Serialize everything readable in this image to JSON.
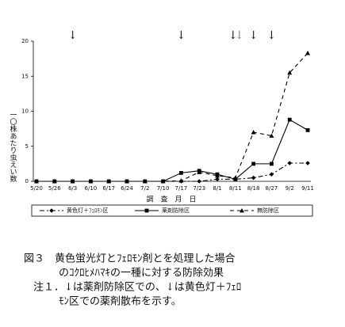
{
  "chart_data": {
    "type": "line",
    "y_axis_label": "一〇株あたり虫えい数",
    "x_axis_label": "調　査　月　日",
    "categories": [
      "5/20",
      "5/26",
      "6/3",
      "6/10",
      "6/17",
      "6/24",
      "7/2",
      "7/10",
      "7/17",
      "7/23",
      "8/1",
      "8/11",
      "8/18",
      "8/27",
      "9/2",
      "9/11"
    ],
    "series": [
      {
        "name": "黄色灯＋ﾌｪﾛﾓﾝ区",
        "color": "#000000",
        "marker": "diamond",
        "dash": "6 3 2 3",
        "values": [
          0,
          0,
          0,
          0,
          0,
          0,
          0,
          0,
          0,
          0,
          0.3,
          0.3,
          0.5,
          1.0,
          2.6,
          2.6
        ]
      },
      {
        "name": "薬剤防除区",
        "color": "#000000",
        "marker": "square",
        "dash": "none",
        "values": [
          0,
          0,
          0,
          0,
          0,
          0,
          0,
          0,
          1.2,
          1.5,
          1.0,
          0.3,
          2.5,
          2.5,
          8.8,
          7.3
        ]
      },
      {
        "name": "無防除区",
        "color": "#000000",
        "marker": "triangle",
        "dash": "5 4",
        "values": [
          0,
          0,
          0,
          0,
          0,
          0,
          0,
          0,
          0.1,
          1.3,
          0.8,
          0.5,
          7.0,
          6.5,
          15.5,
          18.3
        ]
      }
    ],
    "ylim": [
      0,
      20
    ],
    "yticks": [
      0,
      5,
      10,
      15,
      20
    ],
    "annotations": [
      {
        "text": "↓",
        "at": "6/3",
        "style": "solid"
      },
      {
        "text": "↓",
        "at": "7/17",
        "style": "solid"
      },
      {
        "text": "↓",
        "at": "8/11",
        "style": "solid"
      },
      {
        "text": "↓",
        "at": "8/11",
        "style": "dotted"
      },
      {
        "text": "↓",
        "at": "8/18",
        "style": "solid"
      },
      {
        "text": "↓",
        "at": "8/27",
        "style": "solid"
      }
    ]
  },
  "caption": [
    "図３　黄色蛍光灯とﾌｪﾛﾓﾝ剤とを処理した場合",
    "のｺｸﾛﾋﾒﾊﾏｷの一種に対する防除効果",
    "注１．↓は薬剤防除区での、↓は黄色灯＋ﾌｪﾛ",
    "ﾓﾝ区での薬剤散布を示す。"
  ]
}
